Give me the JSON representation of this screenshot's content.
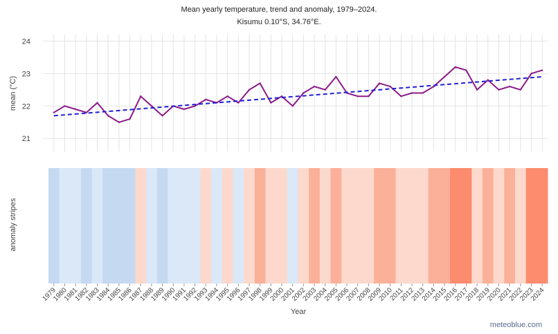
{
  "chart_data": {
    "type": "line",
    "title": "Mean yearly temperature, trend and anomaly, 1979–2024.",
    "subtitle": "Kisumu 0.10°S, 34.76°E.",
    "ylabel": "mean (°C)",
    "stripes_label": "anomaly stripes",
    "xlabel": "Year",
    "ylim": [
      20.6,
      24.2
    ],
    "yticks": [
      21,
      22,
      23,
      24
    ],
    "grid": true,
    "x": [
      1979,
      1980,
      1981,
      1982,
      1983,
      1984,
      1985,
      1986,
      1987,
      1988,
      1989,
      1990,
      1991,
      1992,
      1993,
      1994,
      1995,
      1996,
      1997,
      1998,
      1999,
      2000,
      2001,
      2002,
      2003,
      2004,
      2005,
      2006,
      2007,
      2008,
      2009,
      2010,
      2011,
      2012,
      2013,
      2014,
      2015,
      2016,
      2017,
      2018,
      2019,
      2020,
      2021,
      2022,
      2023,
      2024
    ],
    "series": [
      {
        "values": [
          21.8,
          22.0,
          21.9,
          21.8,
          22.1,
          21.7,
          21.5,
          21.6,
          22.3,
          22.0,
          21.7,
          22.0,
          21.9,
          22.0,
          22.2,
          22.1,
          22.3,
          22.1,
          22.5,
          22.7,
          22.1,
          22.3,
          22.0,
          22.4,
          22.6,
          22.5,
          22.9,
          22.4,
          22.3,
          22.3,
          22.7,
          22.6,
          22.3,
          22.4,
          22.4,
          22.6,
          22.9,
          23.2,
          23.1,
          22.5,
          22.8,
          22.5,
          22.6,
          22.5,
          23.0,
          23.1
        ],
        "color": "#8b1a89"
      },
      {
        "type": "trend",
        "values_start": 21.7,
        "values_end": 22.9,
        "color": "#1f1fd6",
        "dashed": true
      }
    ],
    "stripes": {
      "colors": [
        "#c5d9f0",
        "#dae8f8",
        "#dae8f8",
        "#c5d9f0",
        "#dae8f8",
        "#c5d9f0",
        "#c5d9f0",
        "#c5d9f0",
        "#fcd9cc",
        "#dae8f8",
        "#c5d9f0",
        "#dae8f8",
        "#dae8f8",
        "#dae8f8",
        "#fcd9cc",
        "#dae8f8",
        "#fcd9cc",
        "#dae8f8",
        "#fcd9cc",
        "#fbb09a",
        "#fcd9cc",
        "#fcd9cc",
        "#dae8f8",
        "#fcd9cc",
        "#fbb09a",
        "#fcd9cc",
        "#fbb09a",
        "#fcd9cc",
        "#fcd9cc",
        "#fcd9cc",
        "#fbb09a",
        "#fbb09a",
        "#fcd9cc",
        "#fcd9cc",
        "#fcd9cc",
        "#fbb09a",
        "#fbb09a",
        "#fd8c6e",
        "#fd8c6e",
        "#fcd9cc",
        "#fbb09a",
        "#fcd9cc",
        "#fbb09a",
        "#fcd9cc",
        "#fd8c6e",
        "#fd8c6e"
      ]
    }
  },
  "branding": {
    "text": "meteoblue.com"
  }
}
